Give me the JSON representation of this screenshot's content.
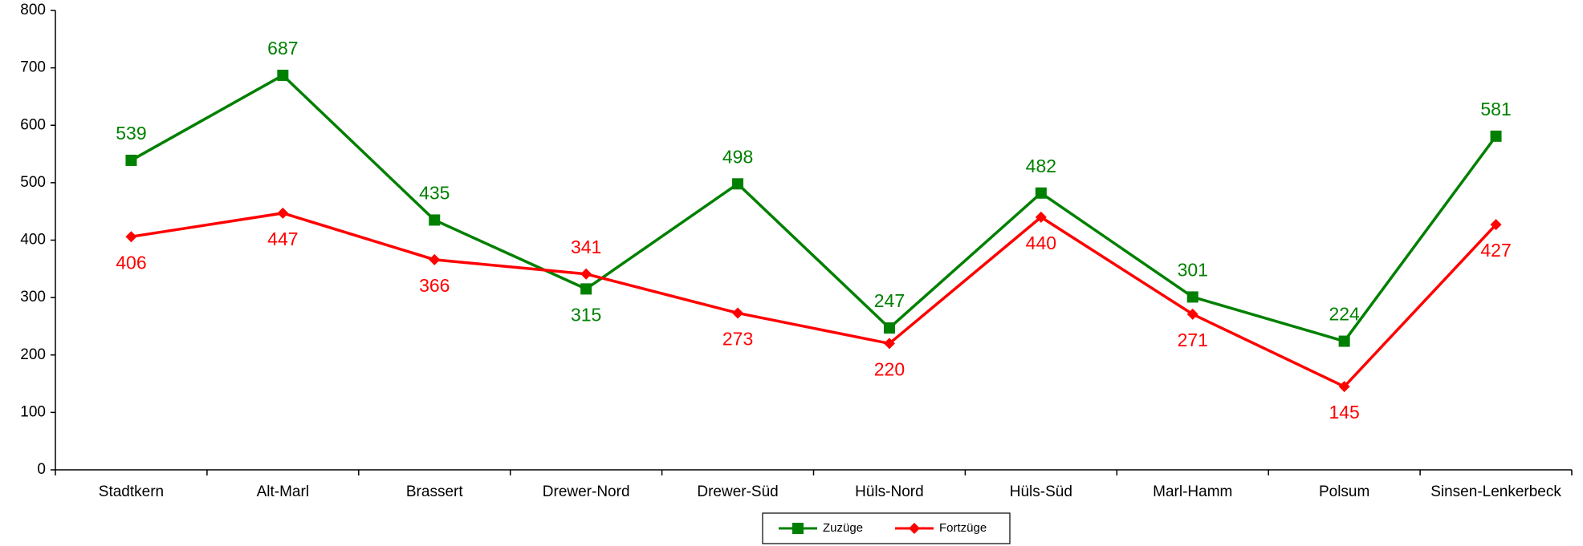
{
  "chart_data": {
    "type": "line",
    "categories": [
      "Stadtkern",
      "Alt-Marl",
      "Brassert",
      "Drewer-Nord",
      "Drewer-Süd",
      "Hüls-Nord",
      "Hüls-Süd",
      "Marl-Hamm",
      "Polsum",
      "Sinsen-Lenkerbeck"
    ],
    "series": [
      {
        "name": "Zuzüge",
        "color": "#008000",
        "marker": "square",
        "values": [
          539,
          687,
          435,
          315,
          498,
          247,
          482,
          301,
          224,
          581
        ]
      },
      {
        "name": "Fortzüge",
        "color": "#ff0000",
        "marker": "diamond",
        "values": [
          406,
          447,
          366,
          341,
          273,
          220,
          440,
          271,
          145,
          427
        ]
      }
    ],
    "ylim": [
      0,
      800
    ],
    "yticks": [
      0,
      100,
      200,
      300,
      400,
      500,
      600,
      700,
      800
    ],
    "grid": false,
    "legend": "bottom"
  }
}
